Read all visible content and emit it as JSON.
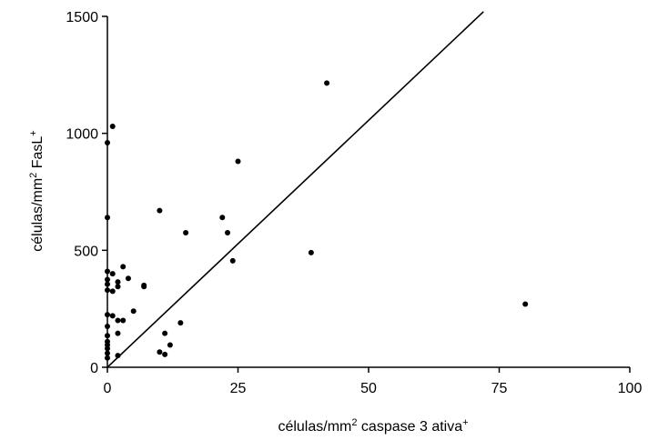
{
  "chart_data": {
    "type": "scatter",
    "title": "",
    "xlabel": {
      "base": "células/mm",
      "sup": "2",
      "rest": " caspase 3 ativa",
      "sup2": "+"
    },
    "ylabel": {
      "base": "células/mm",
      "sup": "2",
      "rest": " FasL",
      "sup2": "+"
    },
    "xlim": [
      0,
      100
    ],
    "ylim": [
      0,
      1500
    ],
    "xticks": [
      0,
      25,
      50,
      75,
      100
    ],
    "xtick_labels": [
      "0",
      "25",
      "50",
      "75",
      "100"
    ],
    "yticks": [
      0,
      500,
      1000,
      1500
    ],
    "ytick_labels": [
      "0",
      "500",
      "1000",
      "1500"
    ],
    "grid": false,
    "line": {
      "x": [
        0,
        72
      ],
      "y": [
        0,
        1520
      ]
    },
    "points": [
      {
        "x": 0,
        "y": 40
      },
      {
        "x": 0,
        "y": 60
      },
      {
        "x": 0,
        "y": 80
      },
      {
        "x": 0,
        "y": 95
      },
      {
        "x": 0,
        "y": 110
      },
      {
        "x": 0,
        "y": 135
      },
      {
        "x": 0,
        "y": 175
      },
      {
        "x": 0,
        "y": 225
      },
      {
        "x": 0,
        "y": 330
      },
      {
        "x": 0,
        "y": 355
      },
      {
        "x": 0,
        "y": 375
      },
      {
        "x": 0,
        "y": 410
      },
      {
        "x": 0,
        "y": 640
      },
      {
        "x": 0,
        "y": 960
      },
      {
        "x": 1,
        "y": 1030
      },
      {
        "x": 1,
        "y": 400
      },
      {
        "x": 1,
        "y": 325
      },
      {
        "x": 1,
        "y": 220
      },
      {
        "x": 2,
        "y": 365
      },
      {
        "x": 2,
        "y": 345
      },
      {
        "x": 2,
        "y": 200
      },
      {
        "x": 2,
        "y": 145
      },
      {
        "x": 2,
        "y": 50
      },
      {
        "x": 3,
        "y": 430
      },
      {
        "x": 3,
        "y": 200
      },
      {
        "x": 4,
        "y": 380
      },
      {
        "x": 5,
        "y": 240
      },
      {
        "x": 7,
        "y": 350
      },
      {
        "x": 7,
        "y": 345
      },
      {
        "x": 10,
        "y": 670
      },
      {
        "x": 10,
        "y": 65
      },
      {
        "x": 11,
        "y": 145
      },
      {
        "x": 11,
        "y": 55
      },
      {
        "x": 12,
        "y": 95
      },
      {
        "x": 14,
        "y": 190
      },
      {
        "x": 15,
        "y": 575
      },
      {
        "x": 22,
        "y": 640
      },
      {
        "x": 23,
        "y": 575
      },
      {
        "x": 24,
        "y": 455
      },
      {
        "x": 25,
        "y": 880
      },
      {
        "x": 39,
        "y": 490
      },
      {
        "x": 42,
        "y": 1215
      },
      {
        "x": 80,
        "y": 270
      }
    ]
  }
}
